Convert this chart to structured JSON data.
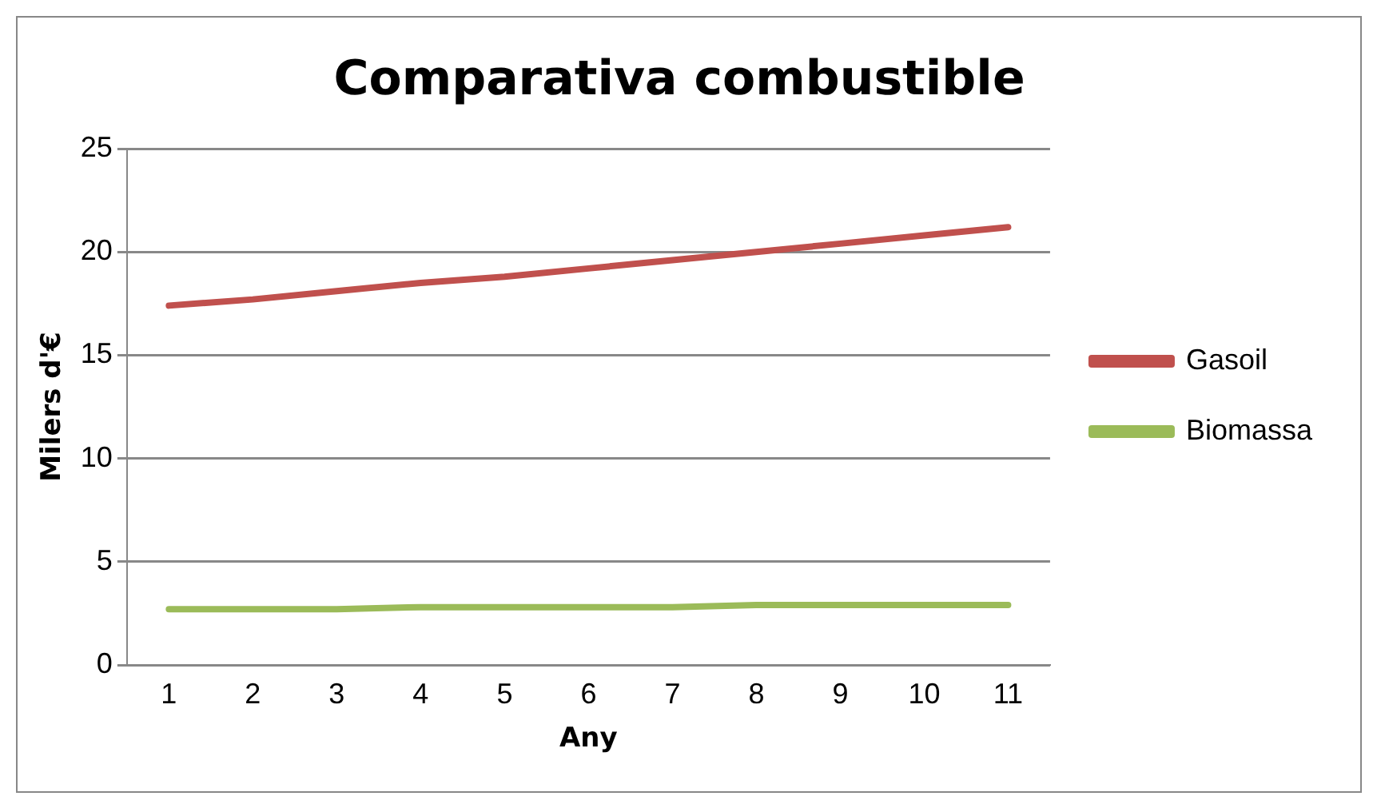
{
  "chart_data": {
    "type": "line",
    "title": "Comparativa combustible",
    "xlabel": "Any",
    "ylabel": "Milers d'€",
    "categories": [
      "1",
      "2",
      "3",
      "4",
      "5",
      "6",
      "7",
      "8",
      "9",
      "10",
      "11"
    ],
    "series": [
      {
        "name": "Gasoil",
        "color": "#c0504d",
        "values": [
          17.4,
          17.7,
          18.1,
          18.5,
          18.8,
          19.2,
          19.6,
          20.0,
          20.4,
          20.8,
          21.2
        ]
      },
      {
        "name": "Biomassa",
        "color": "#9bbb59",
        "values": [
          2.7,
          2.7,
          2.7,
          2.8,
          2.8,
          2.8,
          2.8,
          2.9,
          2.9,
          2.9,
          2.9
        ]
      }
    ],
    "ylim": [
      0,
      25
    ],
    "yticks": [
      0,
      5,
      10,
      15,
      20,
      25
    ],
    "grid": "y",
    "legend": "right",
    "marker": "none",
    "line_style": "solid"
  }
}
